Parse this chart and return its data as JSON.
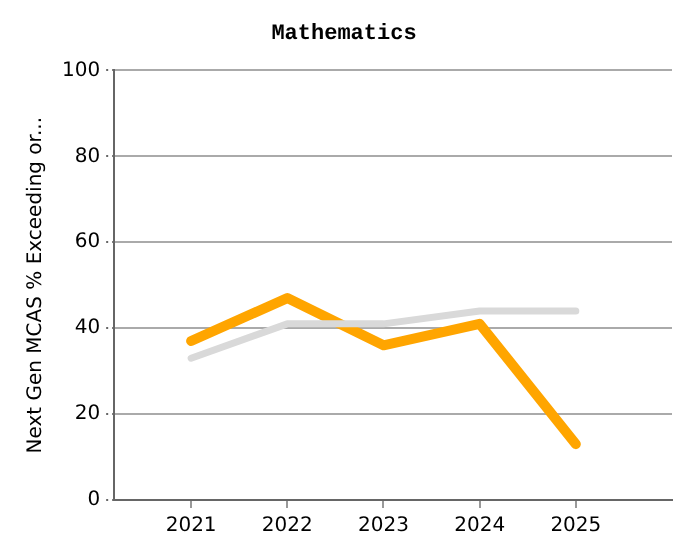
{
  "chart_data": {
    "type": "line",
    "title": "Mathematics",
    "ylabel": "Next Gen MCAS % Exceeding or...",
    "x": [
      2021,
      2022,
      2023,
      2024,
      2025
    ],
    "xlim": [
      2020.2,
      2026
    ],
    "xticks": [
      2021,
      2022,
      2023,
      2024,
      2025
    ],
    "ylim": [
      0,
      100
    ],
    "yticks": [
      0,
      20,
      40,
      60,
      80,
      100
    ],
    "grid": "y",
    "legend": false,
    "marker": "none",
    "line_style": "solid",
    "series": [
      {
        "color": "#d9d9d9",
        "values": [
          33,
          41,
          41,
          44,
          44
        ]
      },
      {
        "color": "#ffa500",
        "values": [
          37,
          47,
          36,
          41,
          13
        ]
      }
    ]
  }
}
